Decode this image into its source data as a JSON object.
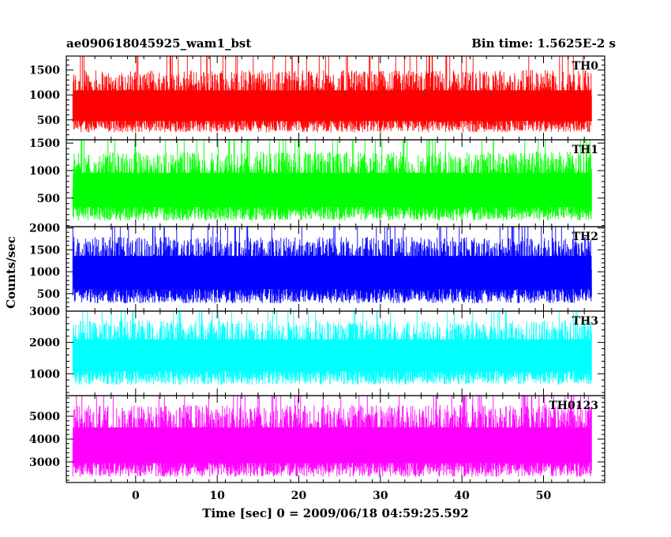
{
  "header": {
    "title": "ae090618045925_wam1_bst",
    "bin_time": "Bin time: 1.5625E-2 s"
  },
  "axes": {
    "ylabel": "Counts/sec",
    "xlabel": "Time [sec] 0 = 2009/06/18 04:59:25.592"
  },
  "chart_data": {
    "type": "line",
    "x_range": [
      -8.5,
      57.5
    ],
    "data_x_range": [
      -7.7,
      55.9
    ],
    "x_ticks": [
      0,
      10,
      20,
      30,
      40,
      50
    ],
    "panels": [
      {
        "name": "TH0",
        "color": "#ff0000",
        "ylim": [
          100,
          1780
        ],
        "yticks": [
          500,
          1000,
          1500
        ],
        "typical_min": 250,
        "typical_max": 1500,
        "mean": 760
      },
      {
        "name": "TH1",
        "color": "#00ff00",
        "ylim": [
          -20,
          1560
        ],
        "yticks": [
          500,
          1000,
          1500
        ],
        "typical_min": 90,
        "typical_max": 1350,
        "mean": 640
      },
      {
        "name": "TH2",
        "color": "#0000ff",
        "ylim": [
          100,
          2030
        ],
        "yticks": [
          500,
          1000,
          1500,
          2000
        ],
        "typical_min": 280,
        "typical_max": 1800,
        "mean": 1000
      },
      {
        "name": "TH3",
        "color": "#00ffff",
        "ylim": [
          300,
          3000
        ],
        "yticks": [
          1000,
          2000,
          3000
        ],
        "typical_min": 650,
        "typical_max": 2700,
        "mean": 1600
      },
      {
        "name": "TH0123",
        "color": "#ff00ff",
        "ylim": [
          2100,
          5900
        ],
        "yticks": [
          3000,
          4000,
          5000
        ],
        "typical_min": 2350,
        "typical_max": 5500,
        "mean": 3700
      }
    ]
  }
}
